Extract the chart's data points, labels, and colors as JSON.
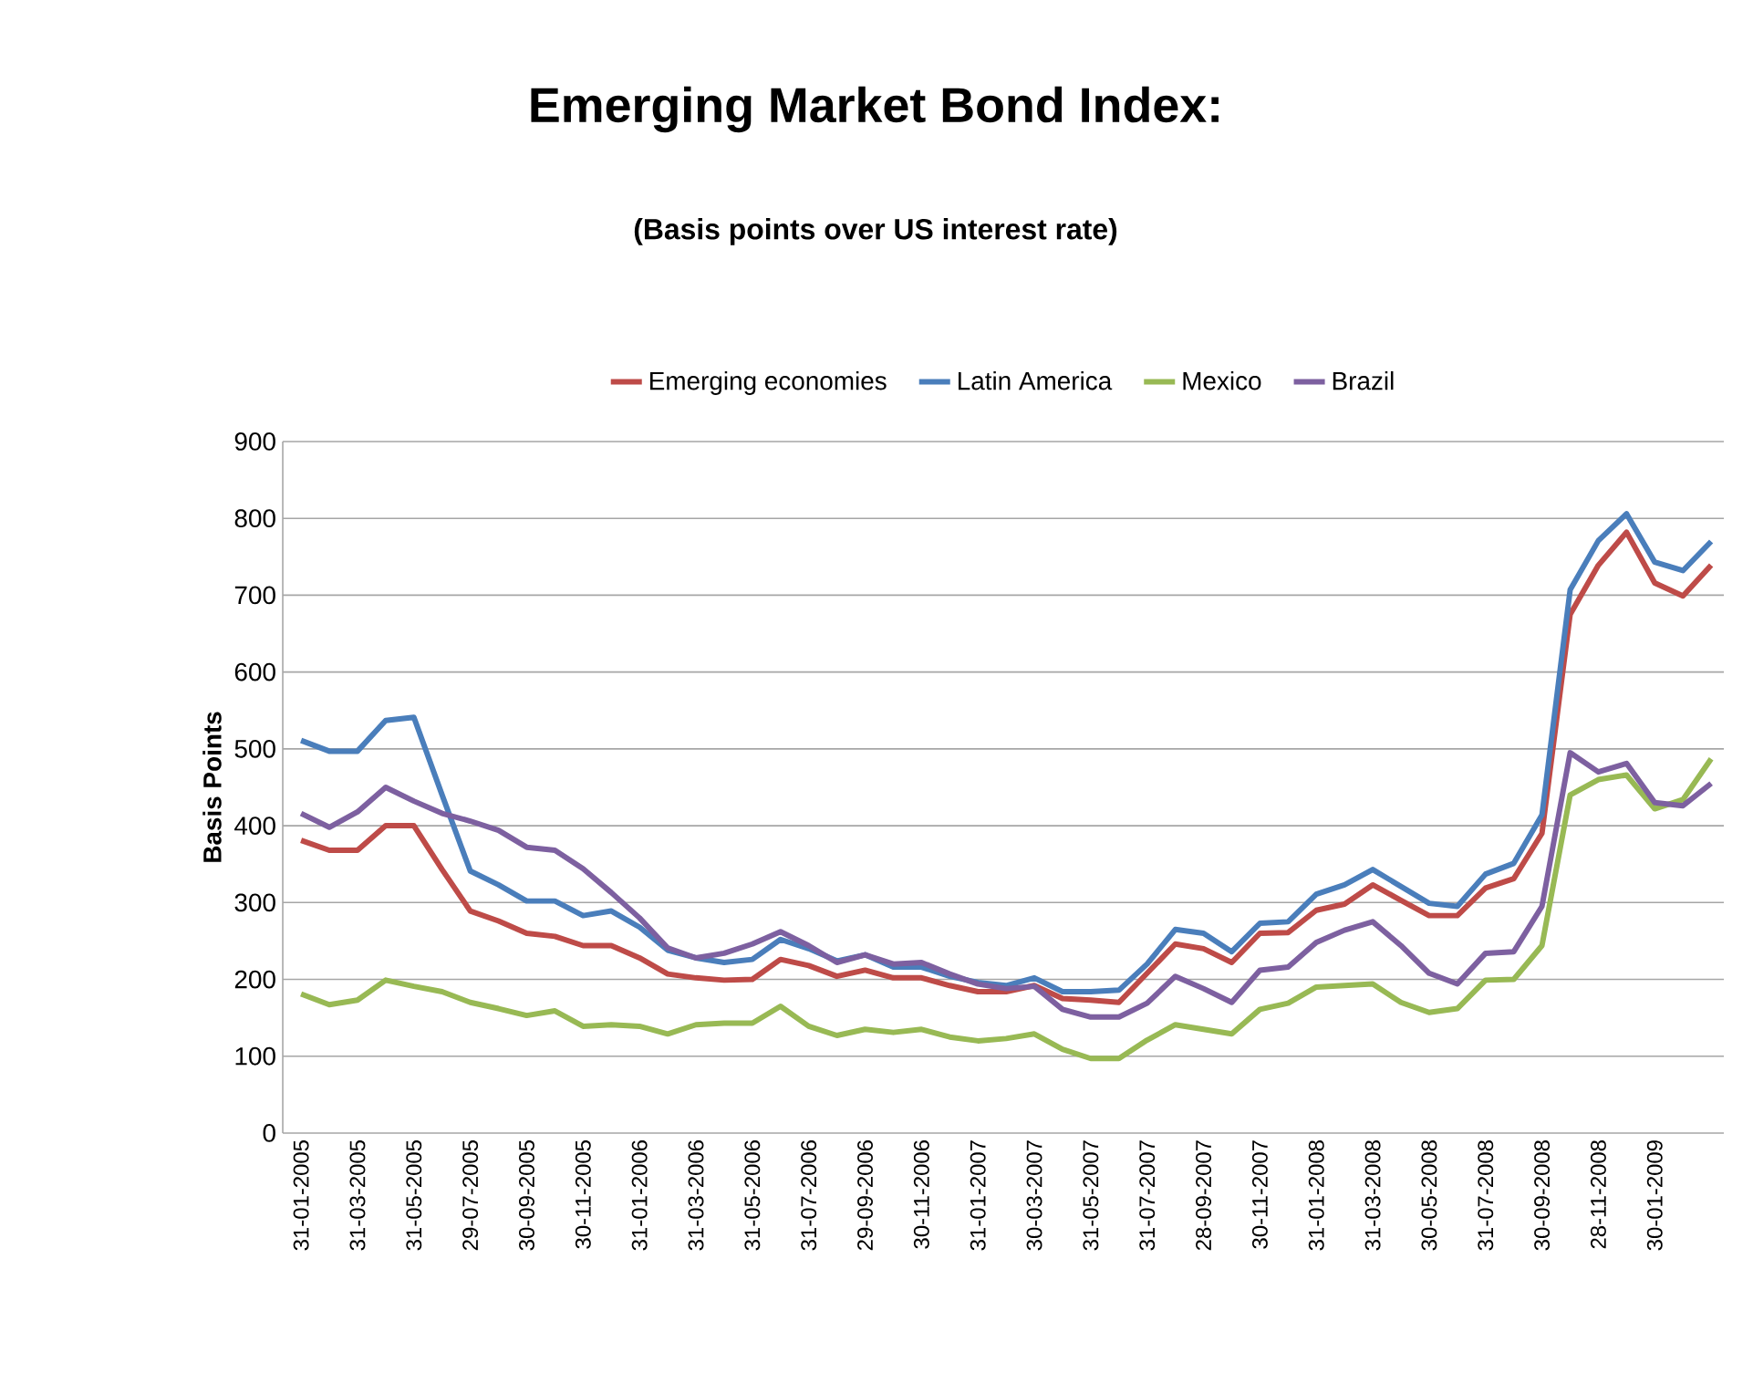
{
  "chart_data": {
    "type": "line",
    "title": "Emerging Market  Bond Index:",
    "subtitle": "(Basis points over US interest rate)",
    "ylabel": "Basis Points",
    "categories": [
      "31-01-2005",
      null,
      "31-03-2005",
      null,
      "31-05-2005",
      null,
      "29-07-2005",
      null,
      "30-09-2005",
      null,
      "30-11-2005",
      null,
      "31-01-2006",
      null,
      "31-03-2006",
      null,
      "31-05-2006",
      null,
      "31-07-2006",
      null,
      "29-09-2006",
      null,
      "30-11-2006",
      null,
      "31-01-2007",
      null,
      "30-03-2007",
      null,
      "31-05-2007",
      null,
      "31-07-2007",
      null,
      "28-09-2007",
      null,
      "30-11-2007",
      null,
      "31-01-2008",
      null,
      "31-03-2008",
      null,
      "30-05-2008",
      null,
      "31-07-2008",
      null,
      "30-09-2008",
      null,
      "28-11-2008",
      null,
      "30-01-2009",
      null,
      null
    ],
    "series": [
      {
        "name": "Emerging economies",
        "color": "#be4b48",
        "values": [
          381,
          368,
          368,
          400,
          400,
          343,
          289,
          276,
          260,
          256,
          244,
          244,
          228,
          207,
          202,
          199,
          200,
          226,
          218,
          204,
          212,
          202,
          202,
          192,
          184,
          184,
          192,
          175,
          173,
          170,
          208,
          246,
          240,
          222,
          260,
          261,
          290,
          298,
          323,
          303,
          283,
          283,
          319,
          331,
          390,
          675,
          739,
          782,
          716,
          699,
          739
        ]
      },
      {
        "name": "Latin America",
        "color": "#4a7ebb",
        "values": [
          511,
          497,
          497,
          537,
          541,
          440,
          341,
          323,
          302,
          302,
          283,
          289,
          268,
          238,
          228,
          222,
          226,
          252,
          240,
          224,
          232,
          216,
          216,
          204,
          196,
          192,
          202,
          184,
          184,
          186,
          220,
          265,
          260,
          236,
          273,
          275,
          311,
          323,
          343,
          321,
          299,
          295,
          337,
          351,
          414,
          707,
          771,
          806,
          743,
          732,
          770
        ]
      },
      {
        "name": "Mexico",
        "color": "#98b954",
        "values": [
          181,
          167,
          173,
          199,
          191,
          184,
          170,
          162,
          153,
          159,
          139,
          141,
          139,
          129,
          141,
          143,
          143,
          165,
          139,
          127,
          135,
          131,
          135,
          125,
          120,
          123,
          129,
          109,
          97,
          97,
          121,
          141,
          135,
          129,
          161,
          169,
          190,
          192,
          194,
          170,
          157,
          162,
          199,
          200,
          244,
          440,
          460,
          466,
          422,
          434,
          487
        ]
      },
      {
        "name": "Brazil",
        "color": "#7d60a0",
        "values": [
          416,
          398,
          418,
          450,
          432,
          416,
          406,
          394,
          372,
          368,
          344,
          313,
          280,
          241,
          228,
          234,
          246,
          262,
          244,
          222,
          232,
          220,
          222,
          207,
          194,
          188,
          191,
          161,
          151,
          151,
          169,
          204,
          188,
          170,
          212,
          216,
          248,
          264,
          275,
          244,
          208,
          194,
          234,
          236,
          295,
          495,
          470,
          481,
          430,
          426,
          455
        ]
      }
    ],
    "ylim": [
      0,
      900
    ],
    "yticks": [
      0,
      100,
      200,
      300,
      400,
      500,
      600,
      700,
      800,
      900
    ],
    "grid": "y",
    "legend": "top",
    "marker": "none",
    "line_style": "solid"
  }
}
